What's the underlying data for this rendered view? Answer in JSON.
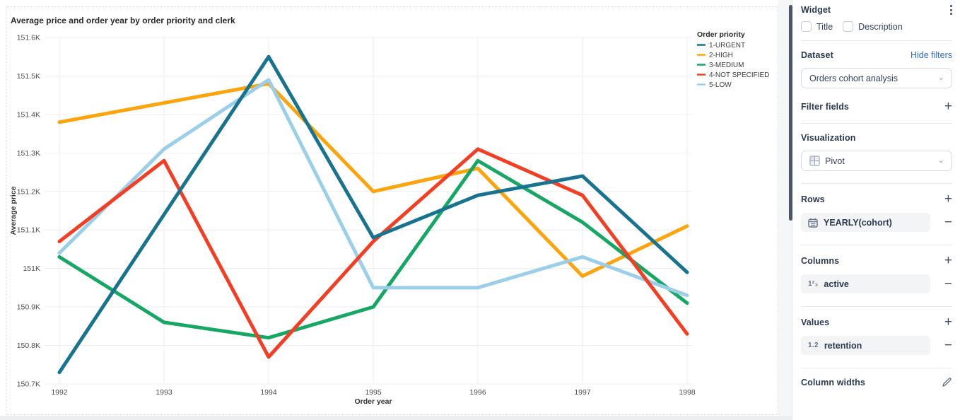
{
  "chart": {
    "title": "Average price and order year by order priority and clerk",
    "chart_data": {
      "type": "line",
      "title": "Average price and order year by order priority and clerk",
      "xlabel": "Order year",
      "ylabel": "Average price",
      "x": [
        1992,
        1993,
        1994,
        1995,
        1996,
        1997,
        1998
      ],
      "ylim": [
        150.7,
        151.6
      ],
      "yticks": [
        "150.7K",
        "150.8K",
        "150.9K",
        "151K",
        "151.1K",
        "151.2K",
        "151.3K",
        "151.4K",
        "151.5K",
        "151.6K"
      ],
      "grid": true,
      "legend_title": "Order priority",
      "legend_position": "top-right",
      "series": [
        {
          "name": "1-URGENT",
          "color": "#17738f",
          "values": [
            150.73,
            151.14,
            151.55,
            151.08,
            151.19,
            151.24,
            150.99
          ]
        },
        {
          "name": "2-HIGH",
          "color": "#fca40b",
          "values": [
            151.38,
            151.43,
            151.48,
            151.2,
            151.26,
            150.98,
            151.11
          ]
        },
        {
          "name": "3-MEDIUM",
          "color": "#16a765",
          "values": [
            151.03,
            150.86,
            150.82,
            150.9,
            151.28,
            151.12,
            150.91
          ]
        },
        {
          "name": "4-NOT SPECIFIED",
          "color": "#f43e23",
          "values": [
            151.07,
            151.28,
            150.77,
            151.07,
            151.31,
            151.19,
            150.83
          ]
        },
        {
          "name": "5-LOW",
          "color": "#9bcfe9",
          "values": [
            151.04,
            151.31,
            151.49,
            150.95,
            150.95,
            151.03,
            150.93
          ]
        }
      ],
      "z_order": [
        "2-HIGH",
        "3-MEDIUM",
        "5-LOW",
        "4-NOT SPECIFIED",
        "1-URGENT"
      ]
    }
  },
  "panel": {
    "widget_title": "Widget",
    "checkboxes": [
      {
        "label": "Title",
        "checked": false
      },
      {
        "label": "Description",
        "checked": false
      }
    ],
    "dataset": {
      "label": "Dataset",
      "link": "Hide filters",
      "selected": "Orders cohort analysis"
    },
    "filter_fields": {
      "label": "Filter fields"
    },
    "visualization": {
      "label": "Visualization",
      "selected": "Pivot"
    },
    "rows": {
      "label": "Rows",
      "item": "YEARLY(cohort)"
    },
    "columns": {
      "label": "Columns",
      "item": "active",
      "item_icon_text": "1²₃"
    },
    "values": {
      "label": "Values",
      "item": "retention",
      "item_icon_text": "1.2"
    },
    "column_widths": {
      "label": "Column widths"
    }
  },
  "colors": {
    "accent_link": "#2d6bcc",
    "heading": "#2b3950",
    "grid_line": "#ededed",
    "scroll_thumb": "#4a5663"
  }
}
